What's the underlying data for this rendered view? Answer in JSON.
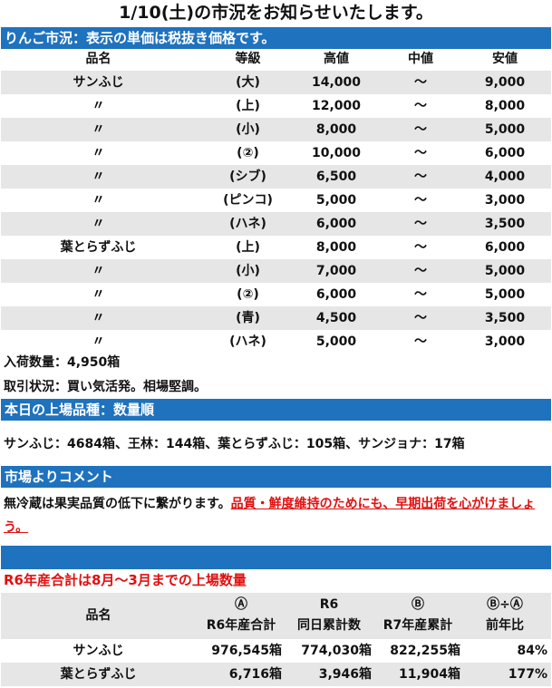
{
  "title": "1/10(土)の市況をお知らせいたします。",
  "section1": "りんご市況：表示の単価は税抜き価格です。",
  "market_table": {
    "headers": [
      "品名",
      "等級",
      "高値",
      "中値",
      "安値"
    ],
    "rows": [
      [
        "サンふじ",
        "(大)",
        "14,000",
        "～",
        "9,000"
      ],
      [
        "〃",
        "(上)",
        "12,000",
        "～",
        "8,000"
      ],
      [
        "〃",
        "(小)",
        "8,000",
        "～",
        "5,000"
      ],
      [
        "〃",
        "(②)",
        "10,000",
        "～",
        "6,000"
      ],
      [
        "〃",
        "(シブ)",
        "6,500",
        "～",
        "4,000"
      ],
      [
        "〃",
        "(ピンコ)",
        "5,000",
        "～",
        "3,000"
      ],
      [
        "〃",
        "(ハネ)",
        "6,000",
        "～",
        "3,500"
      ],
      [
        "葉とらずふじ",
        "(上)",
        "8,000",
        "～",
        "6,000"
      ],
      [
        "〃",
        "(小)",
        "7,000",
        "～",
        "5,000"
      ],
      [
        "〃",
        "(②)",
        "6,000",
        "～",
        "5,000"
      ],
      [
        "〃",
        "(青)",
        "4,500",
        "～",
        "3,500"
      ],
      [
        "〃",
        "(ハネ)",
        "5,000",
        "～",
        "3,000"
      ]
    ]
  },
  "arrival": "入荷数量：4,950箱",
  "trading": "取引状況：買い気活発。相場堅調。",
  "section2": "本日の上場品種：数量順",
  "varieties": "サンふじ：4684箱、王林：144箱、葉とらずふじ：105箱、サンジョナ：17箱",
  "section3": "市場よりコメント",
  "comment_plain": "無冷蔵は果実品質の低下に繋がります。",
  "comment_red": "品質・鮮度維持のためにも、早期出荷を心がけましょう。",
  "note": "R6年産合計は8月～3月までの上場数量",
  "summary": {
    "headers": [
      [
        "品名",
        ""
      ],
      [
        "Ⓐ",
        "R6年産合計"
      ],
      [
        "R6",
        "同日累計数"
      ],
      [
        "Ⓑ",
        "R7年産累計"
      ],
      [
        "Ⓑ÷Ⓐ",
        "前年比"
      ]
    ],
    "rows": [
      [
        "サンふじ",
        "976,545箱",
        "774,030箱",
        "822,255箱",
        "84%"
      ],
      [
        "葉とらずふじ",
        "6,716箱",
        "3,946箱",
        "11,904箱",
        "177%"
      ]
    ]
  },
  "colors": {
    "band": "#1f72bd",
    "stripe": "#e6e6e6",
    "accent_red": "#e01010"
  }
}
